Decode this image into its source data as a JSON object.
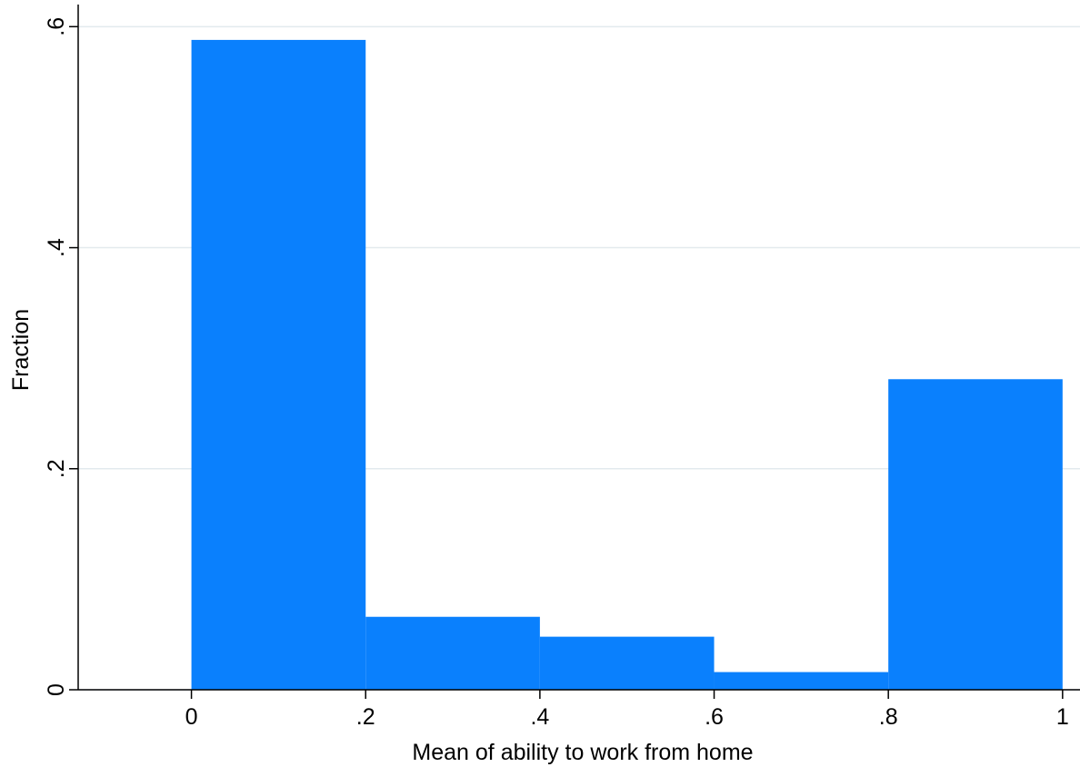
{
  "chart_data": {
    "type": "histogram",
    "xlabel": "Mean of ability to work from home",
    "ylabel": "Fraction",
    "bins": [
      0,
      0.2,
      0.4,
      0.6,
      0.8,
      1
    ],
    "values": [
      0.588,
      0.066,
      0.048,
      0.016,
      0.281
    ],
    "color": "#0a80fd",
    "xlim": [
      -0.13,
      1.02
    ],
    "ylim": [
      0,
      0.62
    ],
    "xticks": [
      0,
      {
        "value": 0.2,
        "label": ".2"
      },
      {
        "value": 0.4,
        "label": ".4"
      },
      {
        "value": 0.6,
        "label": ".6"
      },
      {
        "value": 0.8,
        "label": ".8"
      },
      1
    ],
    "yticks": [
      0,
      {
        "value": 0.2,
        "label": ".2"
      },
      {
        "value": 0.4,
        "label": ".4"
      },
      {
        "value": 0.6,
        "label": ".6"
      }
    ],
    "grid": true
  }
}
